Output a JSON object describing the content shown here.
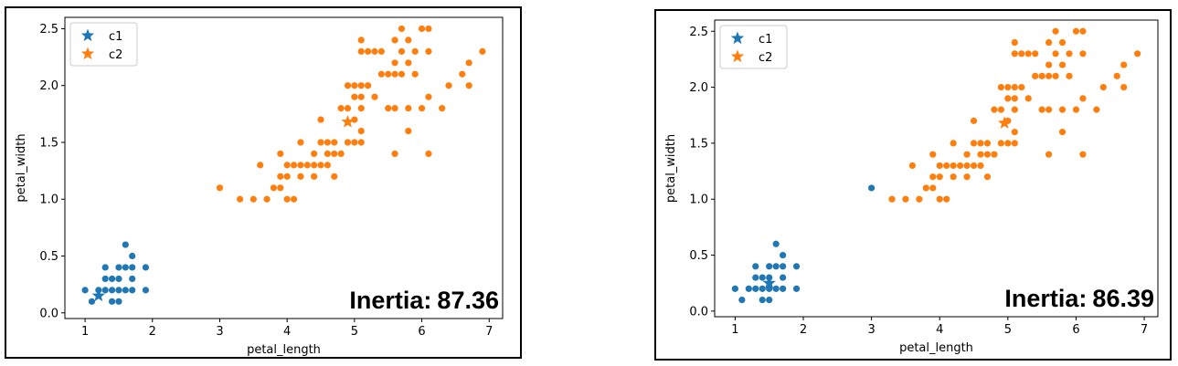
{
  "colors": {
    "c1": "#1f77b4",
    "c2": "#ff7f0e"
  },
  "chart_data": [
    {
      "type": "scatter",
      "xlabel": "petal_length",
      "ylabel": "petal_width",
      "xlim": [
        0.7,
        7.2
      ],
      "ylim": [
        -0.05,
        2.6
      ],
      "xticks": [
        "1",
        "2",
        "3",
        "4",
        "5",
        "6",
        "7"
      ],
      "yticks": [
        "0.0",
        "0.5",
        "1.0",
        "1.5",
        "2.0",
        "2.5"
      ],
      "legend": {
        "position": "top-left",
        "entries": [
          "c1",
          "c2"
        ]
      },
      "grid": false,
      "annotation": {
        "label": "Inertia:",
        "value": "87.36"
      },
      "centroids": [
        {
          "name": "c1",
          "x": 1.2,
          "y": 0.15
        },
        {
          "name": "c2",
          "x": 4.9,
          "y": 1.68
        }
      ],
      "series": [
        {
          "name": "c1",
          "points": [
            [
              1.0,
              0.2
            ],
            [
              1.1,
              0.1
            ],
            [
              1.2,
              0.2
            ],
            [
              1.3,
              0.2
            ],
            [
              1.3,
              0.3
            ],
            [
              1.3,
              0.4
            ],
            [
              1.4,
              0.1
            ],
            [
              1.4,
              0.2
            ],
            [
              1.4,
              0.3
            ],
            [
              1.5,
              0.1
            ],
            [
              1.5,
              0.2
            ],
            [
              1.5,
              0.3
            ],
            [
              1.5,
              0.4
            ],
            [
              1.6,
              0.2
            ],
            [
              1.6,
              0.4
            ],
            [
              1.6,
              0.6
            ],
            [
              1.7,
              0.2
            ],
            [
              1.7,
              0.3
            ],
            [
              1.7,
              0.4
            ],
            [
              1.7,
              0.5
            ],
            [
              1.9,
              0.2
            ],
            [
              1.9,
              0.4
            ]
          ]
        },
        {
          "name": "c2",
          "points": [
            [
              3.0,
              1.1
            ],
            [
              3.3,
              1.0
            ],
            [
              3.5,
              1.0
            ],
            [
              3.6,
              1.3
            ],
            [
              3.7,
              1.0
            ],
            [
              3.8,
              1.1
            ],
            [
              3.9,
              1.1
            ],
            [
              3.9,
              1.2
            ],
            [
              3.9,
              1.4
            ],
            [
              4.0,
              1.0
            ],
            [
              4.0,
              1.2
            ],
            [
              4.0,
              1.3
            ],
            [
              4.1,
              1.0
            ],
            [
              4.1,
              1.3
            ],
            [
              4.2,
              1.2
            ],
            [
              4.2,
              1.3
            ],
            [
              4.2,
              1.5
            ],
            [
              4.3,
              1.3
            ],
            [
              4.4,
              1.2
            ],
            [
              4.4,
              1.3
            ],
            [
              4.4,
              1.4
            ],
            [
              4.5,
              1.3
            ],
            [
              4.5,
              1.5
            ],
            [
              4.5,
              1.7
            ],
            [
              4.6,
              1.3
            ],
            [
              4.6,
              1.4
            ],
            [
              4.6,
              1.5
            ],
            [
              4.7,
              1.2
            ],
            [
              4.7,
              1.4
            ],
            [
              4.7,
              1.5
            ],
            [
              4.8,
              1.4
            ],
            [
              4.8,
              1.8
            ],
            [
              4.9,
              1.5
            ],
            [
              4.9,
              1.8
            ],
            [
              4.9,
              2.0
            ],
            [
              5.0,
              1.5
            ],
            [
              5.0,
              1.7
            ],
            [
              5.0,
              1.9
            ],
            [
              5.0,
              2.0
            ],
            [
              5.1,
              1.5
            ],
            [
              5.1,
              1.6
            ],
            [
              5.1,
              1.8
            ],
            [
              5.1,
              1.9
            ],
            [
              5.1,
              2.0
            ],
            [
              5.1,
              2.3
            ],
            [
              5.1,
              2.4
            ],
            [
              5.2,
              2.0
            ],
            [
              5.2,
              2.3
            ],
            [
              5.3,
              1.9
            ],
            [
              5.3,
              2.3
            ],
            [
              5.4,
              2.1
            ],
            [
              5.4,
              2.3
            ],
            [
              5.5,
              1.8
            ],
            [
              5.5,
              2.1
            ],
            [
              5.6,
              1.4
            ],
            [
              5.6,
              1.8
            ],
            [
              5.6,
              2.1
            ],
            [
              5.6,
              2.2
            ],
            [
              5.6,
              2.4
            ],
            [
              5.7,
              2.1
            ],
            [
              5.7,
              2.3
            ],
            [
              5.7,
              2.5
            ],
            [
              5.8,
              1.6
            ],
            [
              5.8,
              1.8
            ],
            [
              5.8,
              2.2
            ],
            [
              5.8,
              2.4
            ],
            [
              5.9,
              2.1
            ],
            [
              5.9,
              2.3
            ],
            [
              6.0,
              1.8
            ],
            [
              6.0,
              2.5
            ],
            [
              6.1,
              1.4
            ],
            [
              6.1,
              1.9
            ],
            [
              6.1,
              2.3
            ],
            [
              6.1,
              2.5
            ],
            [
              6.3,
              1.8
            ],
            [
              6.4,
              2.0
            ],
            [
              6.6,
              2.1
            ],
            [
              6.7,
              2.0
            ],
            [
              6.7,
              2.2
            ],
            [
              6.9,
              2.3
            ]
          ]
        }
      ]
    },
    {
      "type": "scatter",
      "xlabel": "petal_length",
      "ylabel": "petal_width",
      "xlim": [
        0.7,
        7.2
      ],
      "ylim": [
        -0.05,
        2.6
      ],
      "xticks": [
        "1",
        "2",
        "3",
        "4",
        "5",
        "6",
        "7"
      ],
      "yticks": [
        "0.0",
        "0.5",
        "1.0",
        "1.5",
        "2.0",
        "2.5"
      ],
      "legend": {
        "position": "top-left",
        "entries": [
          "c1",
          "c2"
        ]
      },
      "grid": false,
      "annotation": {
        "label": "Inertia:",
        "value": "86.39"
      },
      "centroids": [
        {
          "name": "c1",
          "x": 1.5,
          "y": 0.25
        },
        {
          "name": "c2",
          "x": 4.95,
          "y": 1.68
        }
      ],
      "series": [
        {
          "name": "c1",
          "points": [
            [
              1.0,
              0.2
            ],
            [
              1.1,
              0.1
            ],
            [
              1.2,
              0.2
            ],
            [
              1.3,
              0.2
            ],
            [
              1.3,
              0.3
            ],
            [
              1.3,
              0.4
            ],
            [
              1.4,
              0.1
            ],
            [
              1.4,
              0.2
            ],
            [
              1.4,
              0.3
            ],
            [
              1.5,
              0.1
            ],
            [
              1.5,
              0.2
            ],
            [
              1.5,
              0.3
            ],
            [
              1.5,
              0.4
            ],
            [
              1.6,
              0.2
            ],
            [
              1.6,
              0.4
            ],
            [
              1.6,
              0.6
            ],
            [
              1.7,
              0.2
            ],
            [
              1.7,
              0.3
            ],
            [
              1.7,
              0.4
            ],
            [
              1.7,
              0.5
            ],
            [
              1.9,
              0.2
            ],
            [
              1.9,
              0.4
            ],
            [
              3.0,
              1.1
            ]
          ]
        },
        {
          "name": "c2",
          "points": [
            [
              3.3,
              1.0
            ],
            [
              3.5,
              1.0
            ],
            [
              3.6,
              1.3
            ],
            [
              3.7,
              1.0
            ],
            [
              3.8,
              1.1
            ],
            [
              3.9,
              1.1
            ],
            [
              3.9,
              1.2
            ],
            [
              3.9,
              1.4
            ],
            [
              4.0,
              1.0
            ],
            [
              4.0,
              1.2
            ],
            [
              4.0,
              1.3
            ],
            [
              4.1,
              1.0
            ],
            [
              4.1,
              1.3
            ],
            [
              4.2,
              1.2
            ],
            [
              4.2,
              1.3
            ],
            [
              4.2,
              1.5
            ],
            [
              4.3,
              1.3
            ],
            [
              4.4,
              1.2
            ],
            [
              4.4,
              1.3
            ],
            [
              4.4,
              1.4
            ],
            [
              4.5,
              1.3
            ],
            [
              4.5,
              1.5
            ],
            [
              4.5,
              1.7
            ],
            [
              4.6,
              1.3
            ],
            [
              4.6,
              1.4
            ],
            [
              4.6,
              1.5
            ],
            [
              4.7,
              1.2
            ],
            [
              4.7,
              1.4
            ],
            [
              4.7,
              1.5
            ],
            [
              4.8,
              1.4
            ],
            [
              4.8,
              1.8
            ],
            [
              4.9,
              1.5
            ],
            [
              4.9,
              1.8
            ],
            [
              4.9,
              2.0
            ],
            [
              5.0,
              1.5
            ],
            [
              5.0,
              1.7
            ],
            [
              5.0,
              1.9
            ],
            [
              5.0,
              2.0
            ],
            [
              5.1,
              1.5
            ],
            [
              5.1,
              1.6
            ],
            [
              5.1,
              1.8
            ],
            [
              5.1,
              1.9
            ],
            [
              5.1,
              2.0
            ],
            [
              5.1,
              2.3
            ],
            [
              5.1,
              2.4
            ],
            [
              5.2,
              2.0
            ],
            [
              5.2,
              2.3
            ],
            [
              5.3,
              1.9
            ],
            [
              5.3,
              2.3
            ],
            [
              5.4,
              2.1
            ],
            [
              5.4,
              2.3
            ],
            [
              5.5,
              1.8
            ],
            [
              5.5,
              2.1
            ],
            [
              5.6,
              1.4
            ],
            [
              5.6,
              1.8
            ],
            [
              5.6,
              2.1
            ],
            [
              5.6,
              2.2
            ],
            [
              5.6,
              2.4
            ],
            [
              5.7,
              2.1
            ],
            [
              5.7,
              2.3
            ],
            [
              5.7,
              2.5
            ],
            [
              5.8,
              1.6
            ],
            [
              5.8,
              1.8
            ],
            [
              5.8,
              2.2
            ],
            [
              5.8,
              2.4
            ],
            [
              5.9,
              2.1
            ],
            [
              5.9,
              2.3
            ],
            [
              6.0,
              1.8
            ],
            [
              6.0,
              2.5
            ],
            [
              6.1,
              1.4
            ],
            [
              6.1,
              1.9
            ],
            [
              6.1,
              2.3
            ],
            [
              6.1,
              2.5
            ],
            [
              6.3,
              1.8
            ],
            [
              6.4,
              2.0
            ],
            [
              6.6,
              2.1
            ],
            [
              6.7,
              2.0
            ],
            [
              6.7,
              2.2
            ],
            [
              6.9,
              2.3
            ]
          ]
        }
      ]
    }
  ]
}
